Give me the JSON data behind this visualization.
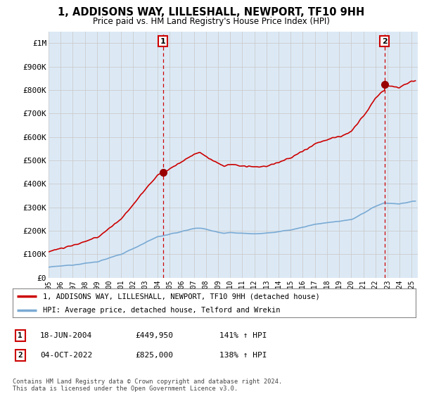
{
  "title": "1, ADDISONS WAY, LILLESHALL, NEWPORT, TF10 9HH",
  "subtitle": "Price paid vs. HM Land Registry's House Price Index (HPI)",
  "bg_color": "#dce9f5",
  "plot_bg_color": "#dce9f5",
  "red_line_label": "1, ADDISONS WAY, LILLESHALL, NEWPORT, TF10 9HH (detached house)",
  "blue_line_label": "HPI: Average price, detached house, Telford and Wrekin",
  "sale1_label": "1",
  "sale1_date": "18-JUN-2004",
  "sale1_price": "£449,950",
  "sale1_hpi": "141% ↑ HPI",
  "sale2_label": "2",
  "sale2_date": "04-OCT-2022",
  "sale2_price": "£825,000",
  "sale2_hpi": "138% ↑ HPI",
  "footer": "Contains HM Land Registry data © Crown copyright and database right 2024.\nThis data is licensed under the Open Government Licence v3.0.",
  "ylim": [
    0,
    1050000
  ],
  "yticks": [
    0,
    100000,
    200000,
    300000,
    400000,
    500000,
    600000,
    700000,
    800000,
    900000,
    1000000
  ],
  "ytick_labels": [
    "£0",
    "£100K",
    "£200K",
    "£300K",
    "£400K",
    "£500K",
    "£600K",
    "£700K",
    "£800K",
    "£900K",
    "£1M"
  ],
  "sale1_x": 2004.45,
  "sale1_y": 449950,
  "sale2_x": 2022.75,
  "sale2_y": 825000,
  "red_color": "#cc0000",
  "blue_color": "#7aaad4",
  "sale_marker_color": "#990000",
  "vline_color": "#cc0000",
  "grid_color": "#bbbbbb",
  "xmin": 1995,
  "xmax": 2025.5
}
